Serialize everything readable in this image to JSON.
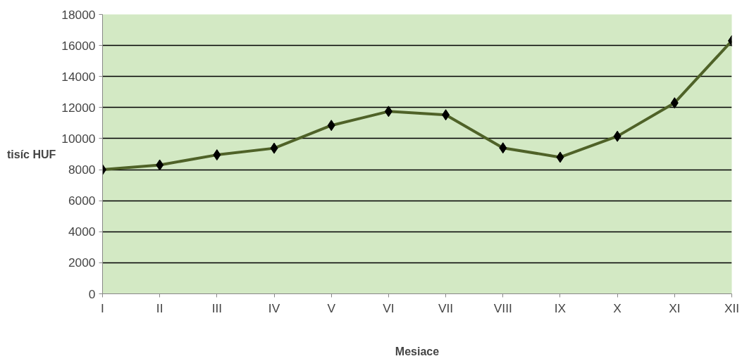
{
  "chart_data": {
    "type": "line",
    "xlabel": "Mesiace",
    "ylabel": "tisíc HUF",
    "categories": [
      "I",
      "II",
      "III",
      "IV",
      "V",
      "VI",
      "VII",
      "VIII",
      "IX",
      "X",
      "XI",
      "XII"
    ],
    "series": [
      {
        "color": "#4f6228",
        "values": [
          8000,
          8300,
          8950,
          9380,
          10850,
          11750,
          11530,
          9400,
          8800,
          10150,
          12300,
          16300
        ]
      }
    ],
    "ylim": [
      0,
      18000
    ],
    "yticks": [
      0,
      2000,
      4000,
      6000,
      8000,
      10000,
      12000,
      14000,
      16000,
      18000
    ],
    "grid": "y",
    "marker": "diamond",
    "line_style": "solid"
  }
}
